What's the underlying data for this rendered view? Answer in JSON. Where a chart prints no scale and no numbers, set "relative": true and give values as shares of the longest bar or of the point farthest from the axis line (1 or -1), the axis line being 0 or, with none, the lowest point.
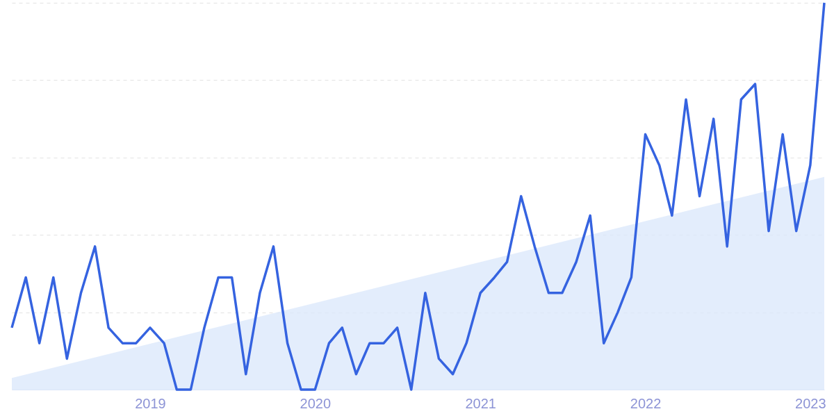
{
  "chart_data": {
    "type": "line",
    "relative": true,
    "grid": "y",
    "marker": "none",
    "line_style": "solid",
    "xlim": [
      "2018-03",
      "2023-02"
    ],
    "xticks": [
      "2019",
      "2020",
      "2021",
      "2022",
      "2023"
    ],
    "series": [
      {
        "type": "area",
        "color": "#dce9fb",
        "x": [
          "2018-03",
          "2023-02"
        ],
        "values": [
          0.03,
          0.55
        ]
      },
      {
        "color": "#3563e0",
        "x": [
          "2018-03",
          "2018-04",
          "2018-05",
          "2018-06",
          "2018-07",
          "2018-08",
          "2018-09",
          "2018-10",
          "2018-11",
          "2018-12",
          "2019-01",
          "2019-02",
          "2019-03",
          "2019-04",
          "2019-05",
          "2019-06",
          "2019-07",
          "2019-08",
          "2019-09",
          "2019-10",
          "2019-11",
          "2019-12",
          "2020-01",
          "2020-02",
          "2020-03",
          "2020-04",
          "2020-05",
          "2020-06",
          "2020-07",
          "2020-08",
          "2020-09",
          "2020-10",
          "2020-11",
          "2020-12",
          "2021-01",
          "2021-02",
          "2021-03",
          "2021-04",
          "2021-05",
          "2021-06",
          "2021-07",
          "2021-08",
          "2021-09",
          "2021-10",
          "2021-11",
          "2021-12",
          "2022-01",
          "2022-02",
          "2022-03",
          "2022-04",
          "2022-05",
          "2022-06",
          "2022-07",
          "2022-08",
          "2022-09",
          "2022-10",
          "2022-11",
          "2022-12",
          "2023-01",
          "2023-02"
        ],
        "values": [
          0.16,
          0.29,
          0.12,
          0.29,
          0.08,
          0.25,
          0.37,
          0.16,
          0.12,
          0.12,
          0.16,
          0.12,
          0,
          0,
          0.16,
          0.29,
          0.29,
          0.04,
          0.25,
          0.37,
          0.12,
          0,
          0,
          0.12,
          0.16,
          0.04,
          0.12,
          0.12,
          0.16,
          0,
          0.25,
          0.08,
          0.04,
          0.12,
          0.25,
          0.29,
          0.33,
          0.5,
          0.37,
          0.25,
          0.25,
          0.33,
          0.45,
          0.12,
          0.2,
          0.29,
          0.66,
          0.58,
          0.45,
          0.75,
          0.5,
          0.7,
          0.37,
          0.75,
          0.79,
          0.41,
          0.66,
          0.41,
          0.58,
          1
        ]
      }
    ]
  }
}
